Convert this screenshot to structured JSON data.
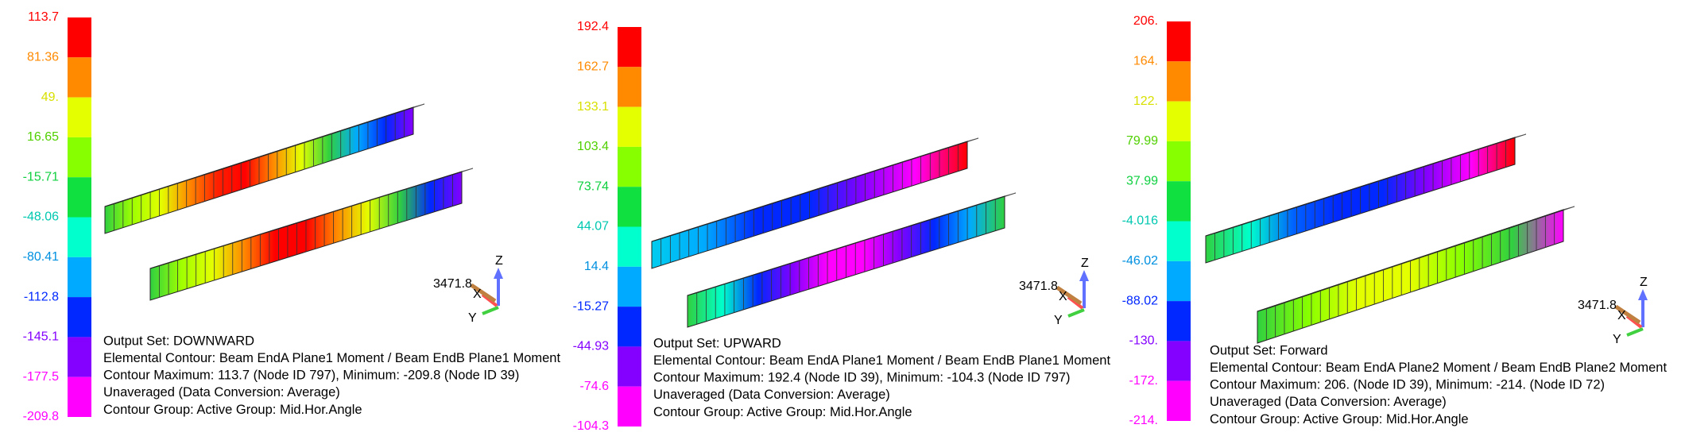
{
  "panels": [
    {
      "legend": [
        "113.7",
        "81.36",
        "49.",
        "16.65",
        "-15.71",
        "-48.06",
        "-80.41",
        "-112.8",
        "-145.1",
        "-177.5",
        "-209.8"
      ],
      "info": [
        "Output Set: DOWNWARD",
        "Elemental Contour: Beam EndA Plane1 Moment / Beam EndB Plane1 Moment",
        "Contour Maximum: 113.7 (Node ID 797), Minimum: -209.8 (Node ID 39)",
        "Unaveraged (Data Conversion: Average)",
        "Contour Group: Active Group: Mid.Hor.Angle"
      ],
      "triad": {
        "value": "3471.8",
        "x": "X",
        "y": "Y",
        "z": "Z"
      }
    },
    {
      "legend": [
        "192.4",
        "162.7",
        "133.1",
        "103.4",
        "73.74",
        "44.07",
        "14.4",
        "-15.27",
        "-44.93",
        "-74.6",
        "-104.3"
      ],
      "info": [
        "Output Set: UPWARD",
        "Elemental Contour: Beam EndA Plane1 Moment / Beam EndB Plane1 Moment",
        "Contour Maximum: 192.4 (Node ID 39), Minimum: -104.3 (Node ID 797)",
        "Unaveraged (Data Conversion: Average)",
        "Contour Group: Active Group: Mid.Hor.Angle"
      ],
      "triad": {
        "value": "3471.8",
        "x": "X",
        "y": "Y",
        "z": "Z"
      }
    },
    {
      "legend": [
        "206.",
        "164.",
        "122.",
        "79.99",
        "37.99",
        "-4.016",
        "-46.02",
        "-88.02",
        "-130.",
        "-172.",
        "-214."
      ],
      "info": [
        "Output Set: Forward",
        "Elemental Contour: Beam EndA Plane2 Moment / Beam EndB Plane2 Moment",
        "Contour Maximum: 206. (Node ID 39), Minimum: -214. (Node ID 72)",
        "Unaveraged (Data Conversion: Average)",
        "Contour Group: Active Group: Mid.Hor.Angle"
      ],
      "triad": {
        "value": "3471.8",
        "x": "X",
        "y": "Y",
        "z": "Z"
      }
    }
  ]
}
